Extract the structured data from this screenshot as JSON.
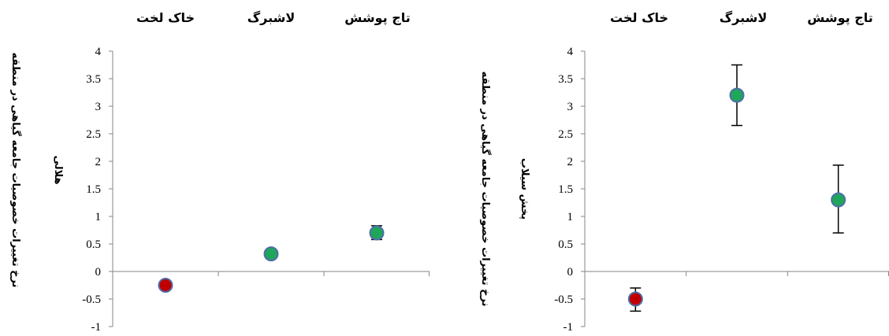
{
  "chart_data": [
    {
      "type": "scatter",
      "title": "",
      "categories": [
        "خاک لخت",
        "لاشبرگ",
        "تاج پوشش"
      ],
      "ylabel_lines": [
        "نرخ تغییرات خصوصیات جامعه گیاهی در منطقه",
        "هلالی"
      ],
      "ylim": [
        -1,
        4
      ],
      "yticks": [
        "4",
        "3.5",
        "3",
        "2.5",
        "2",
        "1.5",
        "1",
        "0.5",
        "0",
        "-0.5",
        "-1"
      ],
      "points": [
        {
          "value": -0.25,
          "err_low": 0.08,
          "err_high": 0.08,
          "color": "#c00000"
        },
        {
          "value": 0.32,
          "err_low": 0.04,
          "err_high": 0.04,
          "color": "#1fa65a"
        },
        {
          "value": 0.7,
          "err_low": 0.12,
          "err_high": 0.13,
          "color": "#1fa65a"
        }
      ],
      "grid": false
    },
    {
      "type": "scatter",
      "title": "",
      "categories": [
        "خاک لخت",
        "لاشبرگ",
        "تاج پوشش"
      ],
      "ylabel_lines": [
        "نرخ تغییرات خصوصیات جامعه گیاهی در منطقه",
        "پخش سیلاب"
      ],
      "ylim": [
        -1,
        4
      ],
      "yticks": [
        "4",
        "3.5",
        "3",
        "2.5",
        "2",
        "1.5",
        "1",
        "0.5",
        "0",
        "-0.5",
        "-1"
      ],
      "points": [
        {
          "value": -0.5,
          "err_low": 0.22,
          "err_high": 0.2,
          "color": "#c00000"
        },
        {
          "value": 3.2,
          "err_low": 0.55,
          "err_high": 0.55,
          "color": "#1fa65a"
        },
        {
          "value": 1.3,
          "err_low": 0.6,
          "err_high": 0.63,
          "color": "#1fa65a"
        }
      ],
      "grid": false
    }
  ]
}
